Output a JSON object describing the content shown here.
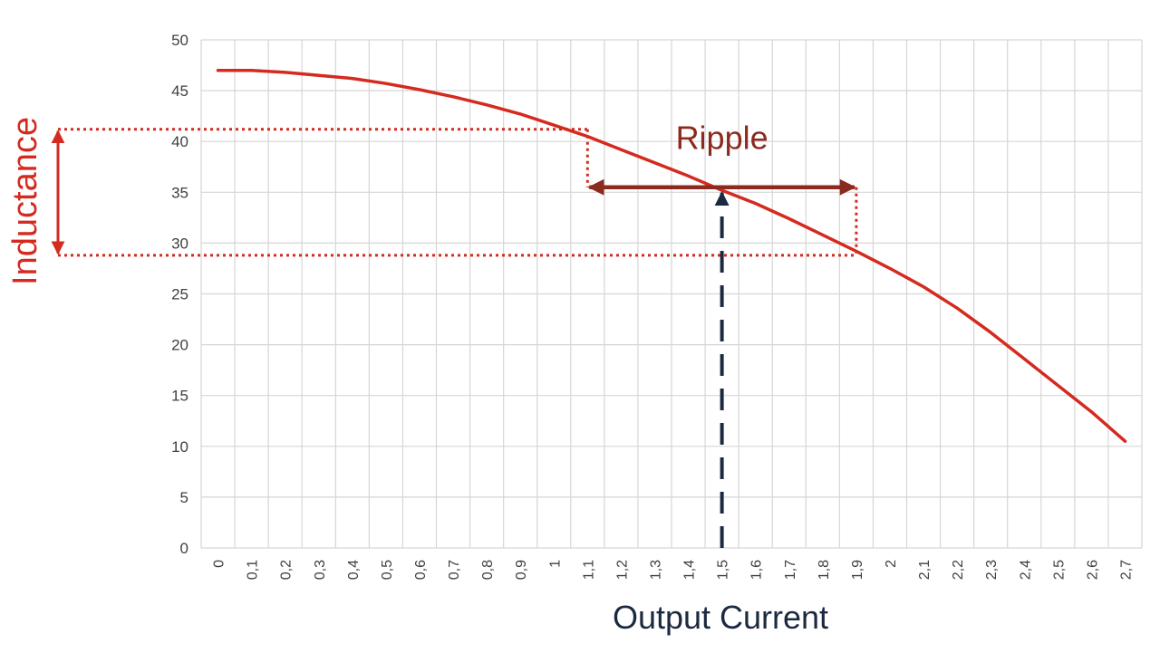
{
  "chart_data": {
    "type": "line",
    "xlabel": "Output Current",
    "ylabel": "Inductance",
    "ylim": [
      0,
      50
    ],
    "y_ticks": [
      0,
      5,
      10,
      15,
      20,
      25,
      30,
      35,
      40,
      45,
      50
    ],
    "x_tick_labels": [
      "0",
      "0,1",
      "0,2",
      "0,3",
      "0,4",
      "0,5",
      "0,6",
      "0,7",
      "0,8",
      "0,9",
      "1",
      "1,1",
      "1,2",
      "1,3",
      "1,4",
      "1,5",
      "1,6",
      "1,7",
      "1,8",
      "1,9",
      "2",
      "2,1",
      "2,2",
      "2,3",
      "2,4",
      "2,5",
      "2,6",
      "2,7"
    ],
    "grid": true,
    "series": [
      {
        "color": "#d42a1f",
        "x": [
          0,
          0.1,
          0.2,
          0.3,
          0.4,
          0.5,
          0.6,
          0.7,
          0.8,
          0.9,
          1.0,
          1.1,
          1.2,
          1.3,
          1.4,
          1.5,
          1.6,
          1.7,
          1.8,
          1.9,
          2.0,
          2.1,
          2.2,
          2.3,
          2.4,
          2.5,
          2.6,
          2.7
        ],
        "y": [
          47.0,
          47.0,
          46.8,
          46.5,
          46.2,
          45.7,
          45.1,
          44.4,
          43.6,
          42.7,
          41.6,
          40.5,
          39.2,
          37.9,
          36.6,
          35.2,
          33.9,
          32.4,
          30.8,
          29.2,
          27.5,
          25.7,
          23.6,
          21.2,
          18.6,
          16.0,
          13.4,
          10.5
        ]
      }
    ],
    "annotations": {
      "ripple": {
        "text": "Ripple",
        "x_from": 1.1,
        "x_to": 1.9,
        "y": 35.5,
        "color": "#8b2a1e"
      },
      "operating_point": {
        "x": 1.5,
        "y": 35.5,
        "color": "#1b2a40"
      },
      "inductance_range": {
        "y_high": 41.2,
        "y_low": 28.8,
        "color": "#d42a1f"
      }
    }
  }
}
